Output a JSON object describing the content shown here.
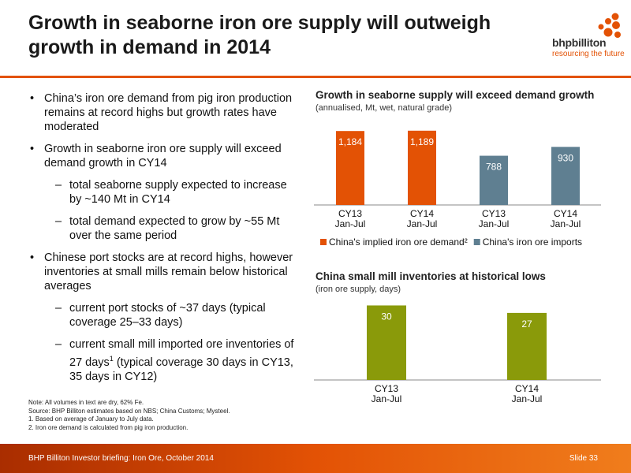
{
  "header": {
    "title_line1": "Growth in seaborne iron ore supply will outweigh",
    "title_line2": "growth in demand in 2014",
    "logo_text": "bhpbilliton",
    "logo_tagline": "resourcing the future",
    "accent_color": "#e35205"
  },
  "bullets": [
    {
      "level": 1,
      "text": "China’s iron ore demand from pig iron production remains at record highs but growth rates have moderated"
    },
    {
      "level": 1,
      "text": "Growth in seaborne iron ore supply will exceed demand growth in CY14"
    },
    {
      "level": 2,
      "text": "total seaborne supply expected to increase by ~140 Mt in CY14"
    },
    {
      "level": 2,
      "text": "total demand expected to grow by ~55 Mt over the same period"
    },
    {
      "level": 1,
      "text": "Chinese port stocks are at record highs, however inventories at small mills remain below historical averages"
    },
    {
      "level": 2,
      "text": "current port stocks of ~37 days (typical coverage 25–33 days)"
    },
    {
      "level": 2,
      "text": "current small mill imported ore inventories of 27 days",
      "sup": "1",
      "text_after": " (typical coverage 30 days in CY13, 35 days in CY12)"
    }
  ],
  "notes": [
    "Note:  All volumes in text are dry, 62% Fe.",
    "Source:  BHP Billiton estimates based on NBS; China Customs; Mysteel.",
    "1.  Based on average of January to July data.",
    "2.  Iron ore demand is calculated from pig iron production."
  ],
  "chart_data": [
    {
      "type": "bar",
      "title": "Growth in seaborne supply will exceed demand growth",
      "subtitle": "(annualised, Mt, wet, natural grade)",
      "categories": [
        [
          "CY13",
          "Jan-Jul"
        ],
        [
          "CY14",
          "Jan-Jul"
        ],
        [
          "CY13",
          "Jan-Jul"
        ],
        [
          "CY14",
          "Jan-Jul"
        ]
      ],
      "values": [
        1184,
        1189,
        788,
        930
      ],
      "value_labels": [
        "1,184",
        "1,189",
        "788",
        "930"
      ],
      "bar_series": [
        0,
        0,
        1,
        1
      ],
      "series": [
        {
          "name": "China's implied iron ore demand²",
          "color": "#e35205"
        },
        {
          "name": "China's iron ore imports",
          "color": "#5f7f91"
        }
      ],
      "legend": "bottom",
      "grid": false,
      "ylim": [
        0,
        1300
      ]
    },
    {
      "type": "bar",
      "title": "China small mill inventories at historical lows",
      "subtitle": "(iron ore supply, days)",
      "categories": [
        [
          "CY13",
          "Jan-Jul"
        ],
        [
          "CY14",
          "Jan-Jul"
        ]
      ],
      "values": [
        30,
        27
      ],
      "value_labels": [
        "30",
        "27"
      ],
      "color": "#8a9a0a",
      "grid": false,
      "ylim": [
        0,
        33
      ]
    }
  ],
  "footer": {
    "left": "BHP Billiton Investor briefing: Iron Ore, October 2014",
    "right": "Slide 33"
  }
}
